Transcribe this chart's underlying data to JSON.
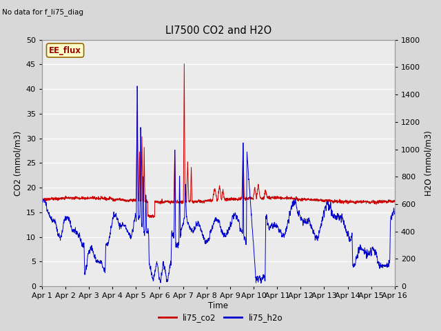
{
  "title": "LI7500 CO2 and H2O",
  "top_left_text": "No data for f_li75_diag",
  "box_label": "EE_flux",
  "xlabel": "Time",
  "ylabel_left": "CO2 (mmol/m3)",
  "ylabel_right": "H2O (mmol/m3)",
  "ylim_left": [
    0,
    50
  ],
  "ylim_right": [
    0,
    1800
  ],
  "yticks_left": [
    0,
    5,
    10,
    15,
    20,
    25,
    30,
    35,
    40,
    45,
    50
  ],
  "yticks_right": [
    0,
    200,
    400,
    600,
    800,
    1000,
    1200,
    1400,
    1600,
    1800
  ],
  "xtick_labels": [
    "Apr 1",
    "Apr 2",
    "Apr 3",
    "Apr 4",
    "Apr 5",
    "Apr 6",
    "Apr 7",
    "Apr 8",
    "Apr 9",
    "Apr 10",
    "Apr 11",
    "Apr 12",
    "Apr 13",
    "Apr 14",
    "Apr 15",
    "Apr 16"
  ],
  "co2_color": "#cc0000",
  "h2o_color": "#0000cc",
  "bg_color": "#d8d8d8",
  "plot_bg_color": "#ebebeb",
  "grid_color": "#ffffff",
  "legend_labels": [
    "li75_co2",
    "li75_h2o"
  ],
  "n_points": 2160,
  "seed": 42
}
